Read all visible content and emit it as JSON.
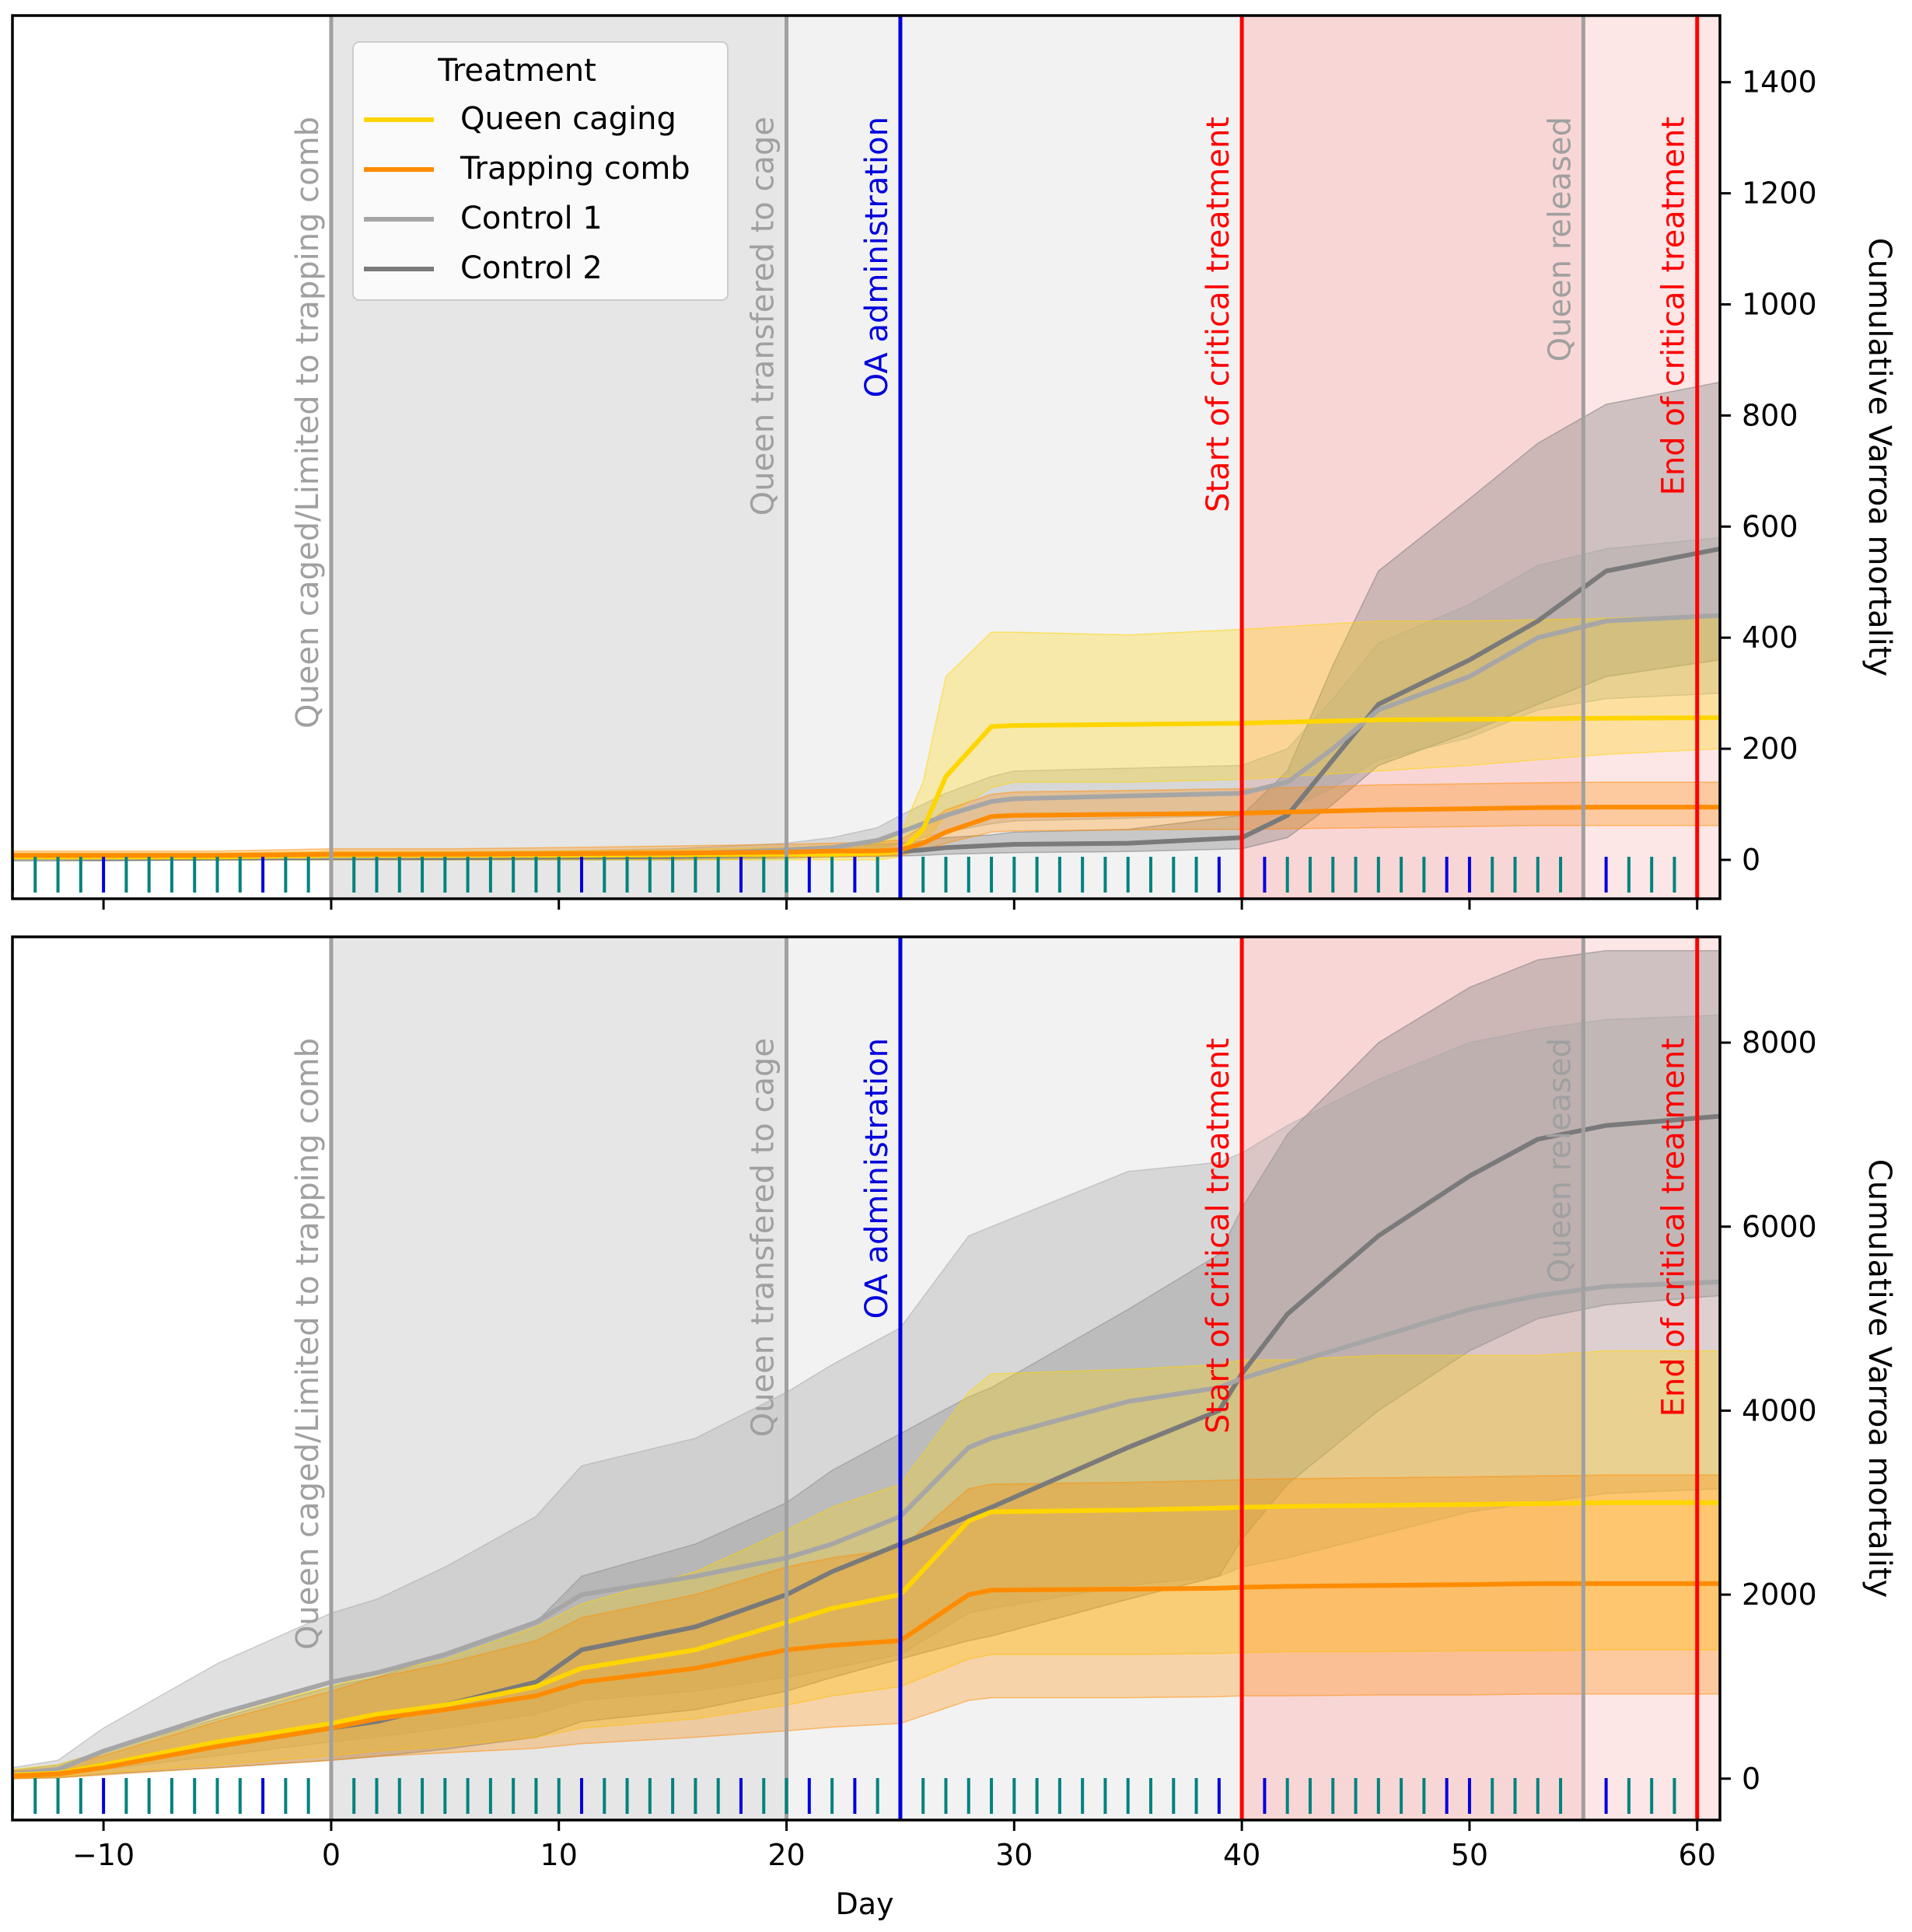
{
  "figure": {
    "xlabel": "Day",
    "ylabel": "Cumulative Varroa mortality",
    "legend": {
      "title": "Treatment",
      "placement": "top-left of upper panel",
      "entries": [
        {
          "label": "Queen caging",
          "color": "#FFD500"
        },
        {
          "label": "Trapping comb",
          "color": "#FF8C00"
        },
        {
          "label": "Control 1",
          "color": "#A6A6A6"
        },
        {
          "label": "Control 2",
          "color": "#7A7A7A"
        }
      ]
    },
    "events": [
      {
        "day": 0,
        "label": "Queen caged/Limited to trapping comb",
        "color": "#A0A0A0"
      },
      {
        "day": 20,
        "label": "Queen transfered to cage",
        "color": "#A0A0A0"
      },
      {
        "day": 25,
        "label": "OA administration",
        "color": "#0000DD"
      },
      {
        "day": 40,
        "label": "Start of critical treatment",
        "color": "#FF0000"
      },
      {
        "day": 55,
        "label": "Queen released",
        "color": "#A0A0A0"
      },
      {
        "day": 60,
        "label": "End of critical treatment",
        "color": "#FF0000"
      }
    ],
    "shaded_periods": [
      {
        "from": 0,
        "to": 20,
        "color": "#E6E6E6"
      },
      {
        "from": 20,
        "to": 40,
        "color": "#F2F2F2"
      },
      {
        "from": 40,
        "to": 55,
        "color": "#F9D6D6"
      },
      {
        "from": 55,
        "to": 61,
        "color": "#FCE6E6"
      }
    ],
    "sampling_days": {
      "teal": [
        -14,
        -13,
        -12,
        -11,
        -9,
        -8,
        -7,
        -6,
        -5,
        -4,
        -2,
        -1,
        1,
        2,
        3,
        4,
        5,
        6,
        7,
        8,
        9,
        10,
        12,
        13,
        14,
        15,
        16,
        17,
        19,
        20,
        22,
        24,
        26,
        27,
        28,
        29,
        30,
        31,
        32,
        33,
        34,
        35,
        36,
        37,
        38,
        42,
        43,
        44,
        45,
        46,
        47,
        48,
        51,
        52,
        53,
        54,
        57,
        58,
        59
      ],
      "blue": [
        -10,
        -3,
        11,
        18,
        21,
        23,
        25,
        39,
        41,
        49,
        50,
        56
      ],
      "colors": {
        "teal": "#00827F",
        "blue": "#0000DD"
      }
    }
  },
  "chart_data": [
    {
      "type": "line",
      "panel": "top",
      "xlabel": "",
      "ylabel": "Cumulative Varroa mortality",
      "xlim": [
        -14,
        61
      ],
      "ylim": [
        -70,
        1520
      ],
      "yticks": [
        0,
        200,
        400,
        600,
        800,
        1000,
        1200,
        1400
      ],
      "x": [
        -14,
        -12,
        -10,
        -5,
        0,
        5,
        10,
        15,
        20,
        22,
        24,
        25,
        26,
        27,
        29,
        30,
        35,
        40,
        42,
        44,
        46,
        50,
        53,
        56,
        61
      ],
      "series": [
        {
          "name": "Queen caging",
          "color": "#FFD500",
          "values": [
            5,
            5,
            5,
            5,
            8,
            8,
            8,
            9,
            10,
            10,
            12,
            15,
            55,
            150,
            240,
            242,
            244,
            246,
            248,
            250,
            252,
            253,
            254,
            255,
            256
          ],
          "lower": [
            0,
            0,
            0,
            0,
            0,
            0,
            0,
            0,
            0,
            0,
            0,
            5,
            30,
            80,
            130,
            140,
            140,
            145,
            150,
            155,
            160,
            170,
            180,
            190,
            200
          ],
          "upper": [
            12,
            12,
            12,
            12,
            15,
            15,
            16,
            18,
            22,
            26,
            30,
            45,
            140,
            330,
            410,
            410,
            405,
            415,
            420,
            425,
            430,
            430,
            432,
            435,
            440
          ]
        },
        {
          "name": "Trapping comb",
          "color": "#FF8C00",
          "values": [
            8,
            8,
            8,
            8,
            10,
            10,
            11,
            12,
            14,
            16,
            16,
            18,
            30,
            50,
            78,
            80,
            82,
            84,
            86,
            88,
            90,
            92,
            94,
            95,
            95
          ],
          "lower": [
            2,
            2,
            2,
            2,
            3,
            3,
            3,
            4,
            5,
            6,
            7,
            8,
            18,
            30,
            50,
            52,
            54,
            55,
            56,
            57,
            58,
            60,
            62,
            62,
            62
          ],
          "upper": [
            16,
            16,
            16,
            16,
            20,
            20,
            22,
            25,
            28,
            30,
            32,
            36,
            60,
            90,
            118,
            122,
            125,
            128,
            130,
            132,
            135,
            137,
            139,
            140,
            140
          ]
        },
        {
          "name": "Control 1",
          "color": "#A6A6A6",
          "values": [
            3,
            3,
            4,
            5,
            6,
            7,
            8,
            10,
            18,
            22,
            35,
            50,
            65,
            80,
            105,
            110,
            115,
            120,
            140,
            200,
            270,
            330,
            400,
            430,
            440
          ],
          "lower": [
            0,
            0,
            0,
            0,
            1,
            1,
            2,
            3,
            8,
            12,
            20,
            30,
            40,
            50,
            65,
            70,
            75,
            80,
            90,
            130,
            180,
            220,
            270,
            290,
            300
          ],
          "upper": [
            8,
            8,
            9,
            10,
            12,
            14,
            16,
            20,
            30,
            40,
            58,
            80,
            100,
            120,
            150,
            160,
            165,
            170,
            200,
            290,
            390,
            460,
            530,
            560,
            580
          ]
        },
        {
          "name": "Control 2",
          "color": "#7A7A7A",
          "values": [
            2,
            2,
            2,
            3,
            4,
            4,
            5,
            6,
            10,
            12,
            14,
            15,
            18,
            22,
            26,
            28,
            30,
            40,
            80,
            180,
            280,
            360,
            430,
            520,
            560
          ],
          "lower": [
            0,
            0,
            0,
            0,
            0,
            0,
            0,
            0,
            3,
            5,
            6,
            7,
            8,
            10,
            12,
            13,
            15,
            20,
            40,
            100,
            170,
            230,
            280,
            330,
            360
          ],
          "upper": [
            5,
            5,
            5,
            6,
            8,
            8,
            10,
            12,
            20,
            25,
            28,
            30,
            35,
            40,
            45,
            50,
            55,
            80,
            160,
            350,
            520,
            650,
            750,
            820,
            860
          ]
        }
      ]
    },
    {
      "type": "line",
      "panel": "bottom",
      "xlabel": "Day",
      "ylabel": "Cumulative Varroa mortality",
      "xlim": [
        -14,
        61
      ],
      "ylim": [
        -450,
        9150
      ],
      "xticks": [
        -10,
        0,
        10,
        20,
        30,
        40,
        50,
        60
      ],
      "yticks": [
        0,
        2000,
        4000,
        6000,
        8000
      ],
      "x": [
        -14,
        -12,
        -10,
        -5,
        0,
        2,
        5,
        9,
        11,
        16,
        20,
        22,
        25,
        28,
        29,
        35,
        39,
        40,
        42,
        46,
        50,
        53,
        56,
        61
      ],
      "series": [
        {
          "name": "Queen caging",
          "color": "#FFD500",
          "values": [
            40,
            60,
            150,
            400,
            600,
            700,
            800,
            1000,
            1200,
            1400,
            1700,
            1850,
            2000,
            2800,
            2900,
            2920,
            2940,
            2950,
            2960,
            2970,
            2980,
            2990,
            3000,
            3000
          ],
          "lower": [
            0,
            20,
            60,
            150,
            250,
            300,
            350,
            450,
            550,
            650,
            800,
            900,
            1000,
            1300,
            1350,
            1350,
            1360,
            1370,
            1380,
            1380,
            1390,
            1390,
            1400,
            1400
          ],
          "upper": [
            100,
            150,
            300,
            700,
            1000,
            1150,
            1300,
            1650,
            1900,
            2250,
            2700,
            2950,
            3200,
            4200,
            4400,
            4450,
            4500,
            4550,
            4550,
            4600,
            4600,
            4600,
            4650,
            4650
          ]
        },
        {
          "name": "Trapping comb",
          "color": "#FF8C00",
          "values": [
            30,
            50,
            120,
            350,
            550,
            650,
            750,
            900,
            1050,
            1200,
            1400,
            1450,
            1500,
            2000,
            2050,
            2060,
            2070,
            2080,
            2090,
            2100,
            2110,
            2120,
            2120,
            2120
          ],
          "lower": [
            0,
            10,
            40,
            120,
            200,
            240,
            280,
            330,
            380,
            450,
            520,
            560,
            600,
            850,
            880,
            880,
            890,
            900,
            900,
            910,
            910,
            920,
            920,
            920
          ],
          "upper": [
            80,
            120,
            250,
            620,
            950,
            1100,
            1250,
            1500,
            1750,
            2000,
            2300,
            2400,
            2500,
            3150,
            3200,
            3220,
            3240,
            3250,
            3260,
            3270,
            3280,
            3290,
            3300,
            3300
          ]
        },
        {
          "name": "Control 1",
          "color": "#A6A6A6",
          "values": [
            50,
            100,
            300,
            700,
            1050,
            1150,
            1350,
            1700,
            2000,
            2200,
            2400,
            2550,
            2850,
            3600,
            3700,
            4100,
            4250,
            4350,
            4500,
            4800,
            5100,
            5250,
            5350,
            5400
          ],
          "lower": [
            0,
            30,
            100,
            250,
            400,
            450,
            550,
            700,
            850,
            950,
            1100,
            1200,
            1350,
            1800,
            1850,
            2100,
            2200,
            2300,
            2400,
            2650,
            2900,
            3000,
            3100,
            3150
          ],
          "upper": [
            120,
            200,
            550,
            1250,
            1800,
            1950,
            2300,
            2850,
            3400,
            3700,
            4200,
            4500,
            4900,
            5900,
            6000,
            6600,
            6700,
            6800,
            7100,
            7600,
            8000,
            8150,
            8250,
            8300
          ]
        },
        {
          "name": "Control 2",
          "color": "#7A7A7A",
          "values": [
            30,
            60,
            150,
            350,
            550,
            620,
            800,
            1050,
            1400,
            1650,
            2000,
            2250,
            2550,
            2850,
            2950,
            3600,
            4000,
            4400,
            5050,
            5900,
            6550,
            6950,
            7100,
            7200
          ],
          "lower": [
            0,
            10,
            50,
            120,
            200,
            240,
            320,
            450,
            620,
            750,
            950,
            1100,
            1300,
            1500,
            1550,
            1950,
            2200,
            2600,
            3200,
            4000,
            4650,
            5000,
            5150,
            5250
          ],
          "upper": [
            90,
            150,
            300,
            650,
            1000,
            1100,
            1350,
            1700,
            2200,
            2550,
            3000,
            3350,
            3750,
            4150,
            4250,
            5100,
            5700,
            6200,
            7000,
            8000,
            8600,
            8900,
            9000,
            9000
          ]
        }
      ]
    }
  ]
}
